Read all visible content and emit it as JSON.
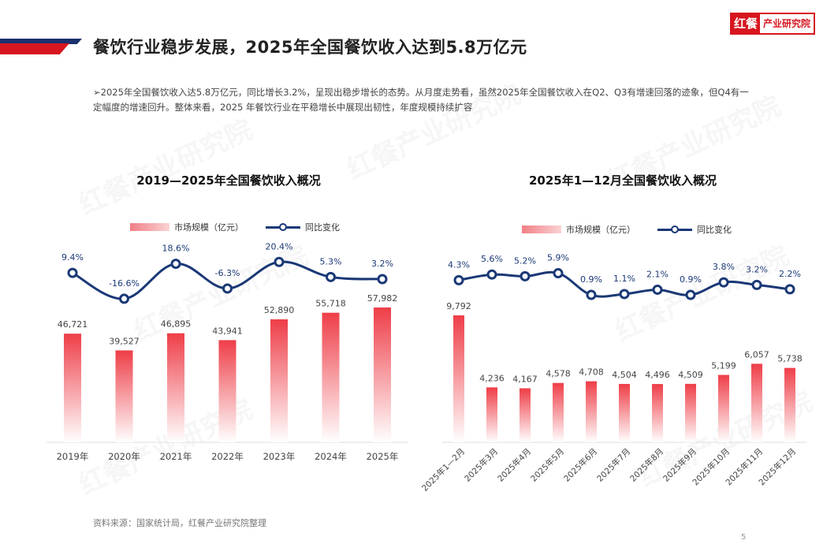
{
  "header": {
    "title": "餐饮行业稳步发展，2025年全国餐饮收入达到5.8万亿元",
    "logo_mark": "红餐",
    "logo_text": "产业研究院"
  },
  "summary": "➢2025年全国餐饮收入达5.8万亿元，同比增长3.2%，呈现出稳步增长的态势。从月度走势看，虽然2025年全国餐饮收入在Q2、Q3有增速回落的迹象，但Q4有一定幅度的增速回升。整体来看，2025 年餐饮行业在平稳增长中展现出韧性，年度规模持续扩容",
  "watermark": "红餐产业研究院",
  "footer": {
    "source": "资料来源：国家统计局，红餐产业研究院整理",
    "page": "5"
  },
  "colors": {
    "bar_top": "#ee3e48",
    "bar_bottom": "#ffffff",
    "line": "#1a3876",
    "brand_red": "#d7161f",
    "brand_navy": "#1a2f6e"
  },
  "chart_data": [
    {
      "type": "bar",
      "title": "2019—2025年全国餐饮收入概况",
      "legend": {
        "bar": "市场规模（亿元）",
        "line": "同比变化"
      },
      "categories": [
        "2019年",
        "2020年",
        "2021年",
        "2022年",
        "2023年",
        "2024年",
        "2025年"
      ],
      "series": [
        {
          "name": "市场规模（亿元）",
          "type": "bar",
          "values": [
            46721,
            39527,
            46895,
            43941,
            52890,
            55718,
            57982
          ],
          "labels": [
            "46,721",
            "39,527",
            "46,895",
            "43,941",
            "52,890",
            "55,718",
            "57,982"
          ]
        },
        {
          "name": "同比变化",
          "type": "line",
          "values": [
            9.4,
            -16.6,
            18.6,
            -6.3,
            20.4,
            5.3,
            3.2
          ],
          "labels": [
            "9.4%",
            "-16.6%",
            "18.6%",
            "-6.3%",
            "20.4%",
            "5.3%",
            "3.2%"
          ]
        }
      ],
      "grid": false
    },
    {
      "type": "bar",
      "title": "2025年1—12月全国餐饮收入概况",
      "legend": {
        "bar": "市场规模（亿元）",
        "line": "同比变化"
      },
      "categories": [
        "2025年1—2月",
        "2025年3月",
        "2025年4月",
        "2025年5月",
        "2025年6月",
        "2025年7月",
        "2025年8月",
        "2025年9月",
        "2025年10月",
        "2025年11月",
        "2025年12月"
      ],
      "series": [
        {
          "name": "市场规模（亿元）",
          "type": "bar",
          "values": [
            9792,
            4236,
            4167,
            4578,
            4708,
            4504,
            4496,
            4509,
            5199,
            6057,
            5738
          ],
          "labels": [
            "9,792",
            "4,236",
            "4,167",
            "4,578",
            "4,708",
            "4,504",
            "4,496",
            "4,509",
            "5,199",
            "6,057",
            "5,738"
          ]
        },
        {
          "name": "同比变化",
          "type": "line",
          "values": [
            4.3,
            5.6,
            5.2,
            5.9,
            0.9,
            1.1,
            2.1,
            0.9,
            3.8,
            3.2,
            2.2
          ],
          "labels": [
            "4.3%",
            "5.6%",
            "5.2%",
            "5.9%",
            "0.9%",
            "1.1%",
            "2.1%",
            "0.9%",
            "3.8%",
            "3.2%",
            "2.2%"
          ]
        }
      ],
      "grid": false
    }
  ]
}
